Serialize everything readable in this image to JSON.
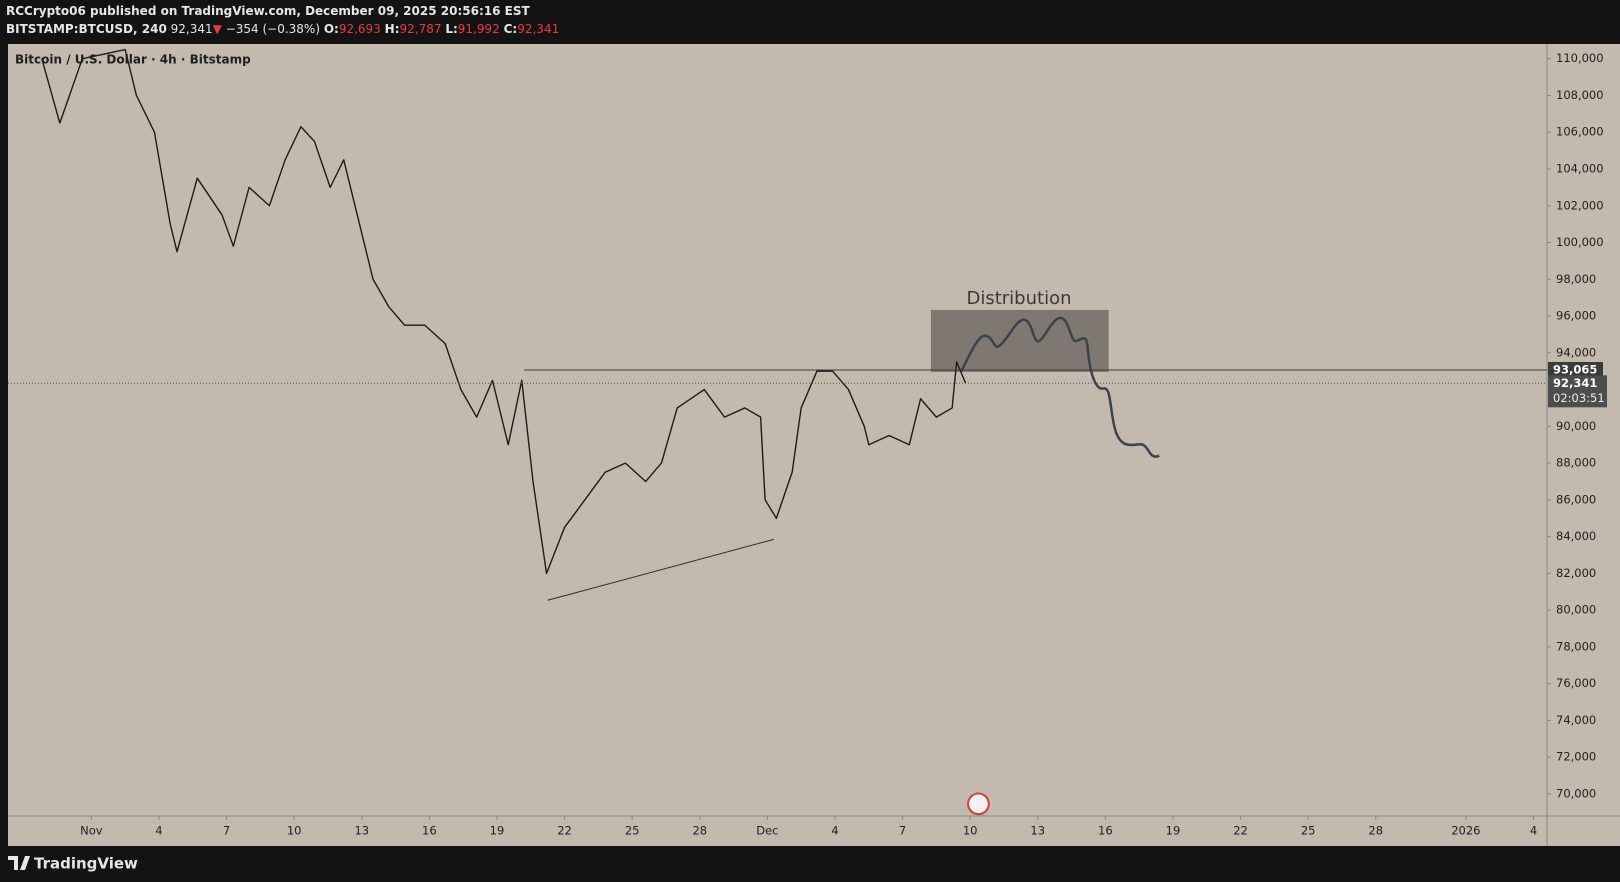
{
  "header": {
    "publisher": "RCCrypto06 published on TradingView.com, December 09, 2025 20:56:16 EST",
    "symbol": "BITSTAMP:BTCUSD, 240",
    "price": "92,341",
    "arrow": "▼",
    "change": "−354 (−0.38%)",
    "ohlc": [
      {
        "key": "O:",
        "value": "92,693"
      },
      {
        "key": "H:",
        "value": "92,787"
      },
      {
        "key": "L:",
        "value": "91,992"
      },
      {
        "key": "C:",
        "value": "92,341"
      }
    ]
  },
  "footer": {
    "brand": "TradingView"
  },
  "chart_data": {
    "type": "line",
    "legend_text": "Bitcoin / U.S. Dollar · 4h · Bitstamp",
    "annotation": "Distribution",
    "color": "#1c1c1c",
    "x": [
      -2.2,
      -1.4,
      -0.4,
      1.5,
      2,
      2.8,
      3.5,
      3.8,
      4.7,
      5.8,
      6.3,
      7,
      7.9,
      8.6,
      9.3,
      9.9,
      10.6,
      11.2,
      11.8,
      12.5,
      13.2,
      13.9,
      14.8,
      15.7,
      16.4,
      17.1,
      17.8,
      18.5,
      19.1,
      19.6,
      20.2,
      21,
      21.9,
      22.8,
      23.7,
      24.6,
      25.3,
      26,
      27.2,
      28.1,
      29,
      29.7,
      29.9,
      30.4,
      31.1,
      31.5,
      32.2,
      32.9,
      33.6,
      34.3,
      34.5,
      35.4,
      36.3,
      36.8,
      37.5,
      38.2,
      38.4,
      38.8
    ],
    "values": [
      110000,
      106500,
      110000,
      110500,
      108000,
      106000,
      101000,
      99500,
      103500,
      101500,
      99800,
      103000,
      102000,
      104500,
      106300,
      105500,
      103000,
      104500,
      101500,
      98000,
      96500,
      95500,
      95500,
      94500,
      92000,
      90500,
      92500,
      89000,
      92500,
      87000,
      82000,
      84500,
      86000,
      87500,
      88000,
      87000,
      88000,
      91000,
      92000,
      90500,
      91000,
      90500,
      86000,
      85000,
      87500,
      91000,
      93000,
      93000,
      92000,
      90000,
      89000,
      89500,
      89000,
      91500,
      90500,
      91000,
      93500,
      92341
    ],
    "xlim": [
      -3.7,
      64.6
    ],
    "xticks": [
      {
        "value": 0,
        "label": "Nov"
      },
      {
        "value": 3,
        "label": "4"
      },
      {
        "value": 6,
        "label": "7"
      },
      {
        "value": 9,
        "label": "10"
      },
      {
        "value": 12,
        "label": "13"
      },
      {
        "value": 15,
        "label": "16"
      },
      {
        "value": 18,
        "label": "19"
      },
      {
        "value": 21,
        "label": "22"
      },
      {
        "value": 24,
        "label": "25"
      },
      {
        "value": 27,
        "label": "28"
      },
      {
        "value": 30,
        "label": "Dec"
      },
      {
        "value": 33,
        "label": "4"
      },
      {
        "value": 36,
        "label": "7"
      },
      {
        "value": 39,
        "label": "10"
      },
      {
        "value": 42,
        "label": "13"
      },
      {
        "value": 45,
        "label": "16"
      },
      {
        "value": 48,
        "label": "19"
      },
      {
        "value": 51,
        "label": "22"
      },
      {
        "value": 54,
        "label": "25"
      },
      {
        "value": 57,
        "label": "28"
      },
      {
        "value": 61,
        "label": "2026"
      },
      {
        "value": 64,
        "label": "4"
      }
    ],
    "ylim": [
      68800,
      110800
    ],
    "yticks": [
      {
        "value": 70000,
        "label": "70,000"
      },
      {
        "value": 72000,
        "label": "72,000"
      },
      {
        "value": 74000,
        "label": "74,000"
      },
      {
        "value": 76000,
        "label": "76,000"
      },
      {
        "value": 78000,
        "label": "78,000"
      },
      {
        "value": 80000,
        "label": "80,000"
      },
      {
        "value": 82000,
        "label": "82,000"
      },
      {
        "value": 84000,
        "label": "84,000"
      },
      {
        "value": 86000,
        "label": "86,000"
      },
      {
        "value": 88000,
        "label": "88,000"
      },
      {
        "value": 90000,
        "label": "90,000"
      },
      {
        "value": 92000,
        "label": "92,000"
      },
      {
        "value": 94000,
        "label": "94,000"
      },
      {
        "value": 96000,
        "label": "96,000"
      },
      {
        "value": 98000,
        "label": "98,000"
      },
      {
        "value": 100000,
        "label": "100,000"
      },
      {
        "value": 102000,
        "label": "102,000"
      },
      {
        "value": 104000,
        "label": "104,000"
      },
      {
        "value": 106000,
        "label": "106,000"
      },
      {
        "value": 108000,
        "label": "108,000"
      },
      {
        "value": 110000,
        "label": "110,000"
      }
    ],
    "level": {
      "value": 93065,
      "label": "93,065",
      "start": 19.2
    },
    "last_price": {
      "value": 92341,
      "label": "92,341",
      "countdown": "02:03:51"
    },
    "grid": false
  }
}
